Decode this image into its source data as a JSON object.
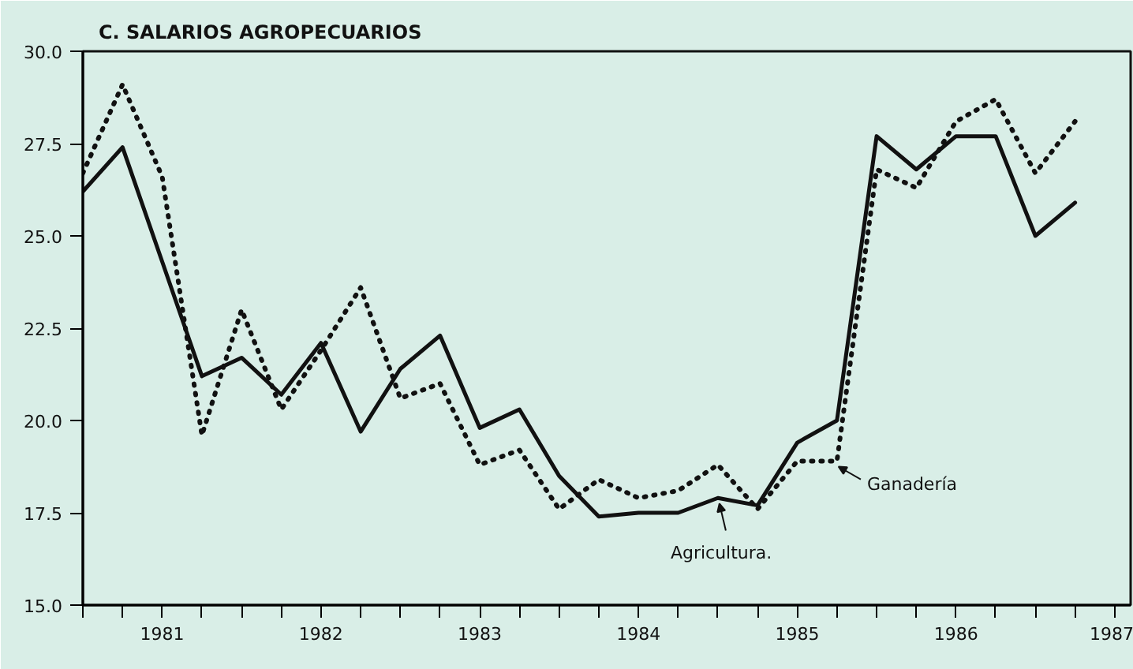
{
  "chart_data": {
    "type": "line",
    "title": "C. SALARIOS AGROPECUARIOS",
    "x": [
      1981,
      1981.25,
      1981.5,
      1981.75,
      1982,
      1982.25,
      1982.5,
      1982.75,
      1983,
      1983.25,
      1983.5,
      1983.75,
      1984,
      1984.25,
      1984.5,
      1984.75,
      1985,
      1985.25,
      1985.5,
      1985.75,
      1986,
      1986.25,
      1986.5,
      1986.75,
      1987,
      1987.25
    ],
    "series": [
      {
        "color": "#111111",
        "line_style": "solid",
        "values": [
          26.2,
          27.4,
          24.3,
          21.2,
          21.7,
          20.7,
          22.1,
          19.7,
          21.4,
          22.3,
          19.8,
          20.3,
          18.5,
          17.4,
          17.5,
          17.5,
          17.9,
          17.7,
          19.4,
          20.0,
          27.7,
          26.8,
          27.7,
          27.7,
          25.0,
          25.9
        ]
      },
      {
        "color": "#111111",
        "line_style": "dotted",
        "values": [
          26.7,
          29.1,
          26.6,
          19.6,
          23.0,
          20.3,
          21.9,
          23.6,
          20.6,
          21.0,
          18.8,
          19.2,
          17.6,
          18.4,
          17.9,
          18.1,
          18.8,
          17.6,
          18.9,
          18.9,
          26.8,
          26.3,
          28.1,
          28.7,
          26.7,
          28.1
        ]
      }
    ],
    "annotations": [
      {
        "text": "Agricultura.",
        "x": 1985,
        "y": 17.9
      },
      {
        "text": "Ganadería",
        "x": 1985.75,
        "y": 18.9
      }
    ],
    "xlim": [
      1981,
      1987.6
    ],
    "xticks": [
      {
        "value": 1981,
        "label": null
      },
      {
        "value": 1981.25,
        "label": null
      },
      {
        "value": 1981.5,
        "label": "1981"
      },
      {
        "value": 1981.75,
        "label": null
      },
      {
        "value": 1982,
        "label": null
      },
      {
        "value": 1982.25,
        "label": null
      },
      {
        "value": 1982.5,
        "label": "1982"
      },
      {
        "value": 1982.75,
        "label": null
      },
      {
        "value": 1983,
        "label": null
      },
      {
        "value": 1983.25,
        "label": null
      },
      {
        "value": 1983.5,
        "label": "1983"
      },
      {
        "value": 1983.75,
        "label": null
      },
      {
        "value": 1984,
        "label": null
      },
      {
        "value": 1984.25,
        "label": null
      },
      {
        "value": 1984.5,
        "label": "1984"
      },
      {
        "value": 1984.75,
        "label": null
      },
      {
        "value": 1985,
        "label": null
      },
      {
        "value": 1985.25,
        "label": null
      },
      {
        "value": 1985.5,
        "label": "1985"
      },
      {
        "value": 1985.75,
        "label": null
      },
      {
        "value": 1986,
        "label": null
      },
      {
        "value": 1986.25,
        "label": null
      },
      {
        "value": 1986.5,
        "label": "1986"
      },
      {
        "value": 1986.75,
        "label": null
      },
      {
        "value": 1987,
        "label": null
      },
      {
        "value": 1987.25,
        "label": null
      },
      {
        "value": 1987.5,
        "label": "1987"
      }
    ],
    "ylim": [
      15,
      30
    ],
    "yticks": [
      {
        "value": 15,
        "label": "15.0"
      },
      {
        "value": 17.5,
        "label": "17.5"
      },
      {
        "value": 20,
        "label": "20.0"
      },
      {
        "value": 22.5,
        "label": "22.5"
      },
      {
        "value": 25,
        "label": "25.0"
      },
      {
        "value": 27.5,
        "label": "27.5"
      },
      {
        "value": 30,
        "label": "30.0"
      }
    ]
  }
}
